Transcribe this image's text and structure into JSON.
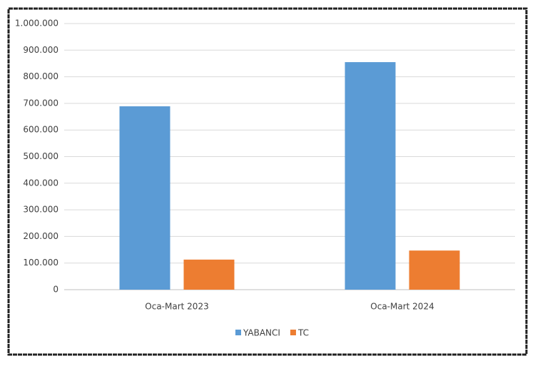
{
  "chart_data": {
    "type": "bar",
    "categories": [
      "Oca-Mart 2023",
      "Oca-Mart 2024"
    ],
    "series": [
      {
        "name": "YABANCI",
        "color": "#5b9bd5",
        "values": [
          689000,
          855000
        ]
      },
      {
        "name": "TC",
        "color": "#ed7d31",
        "values": [
          113000,
          147000
        ]
      }
    ],
    "ylim": [
      0,
      1000000
    ],
    "yticks": [
      0,
      {
        "value": 100000,
        "label": "100.000"
      },
      {
        "value": 200000,
        "label": "200.000"
      },
      {
        "value": 300000,
        "label": "300.000"
      },
      {
        "value": 400000,
        "label": "400.000"
      },
      {
        "value": 500000,
        "label": "500.000"
      },
      {
        "value": 600000,
        "label": "600.000"
      },
      {
        "value": 700000,
        "label": "700.000"
      },
      {
        "value": 800000,
        "label": "800.000"
      },
      {
        "value": 900000,
        "label": "900.000"
      },
      {
        "value": 1000000,
        "label": "1.000.000"
      }
    ],
    "grid": true,
    "legend": "bottom"
  }
}
